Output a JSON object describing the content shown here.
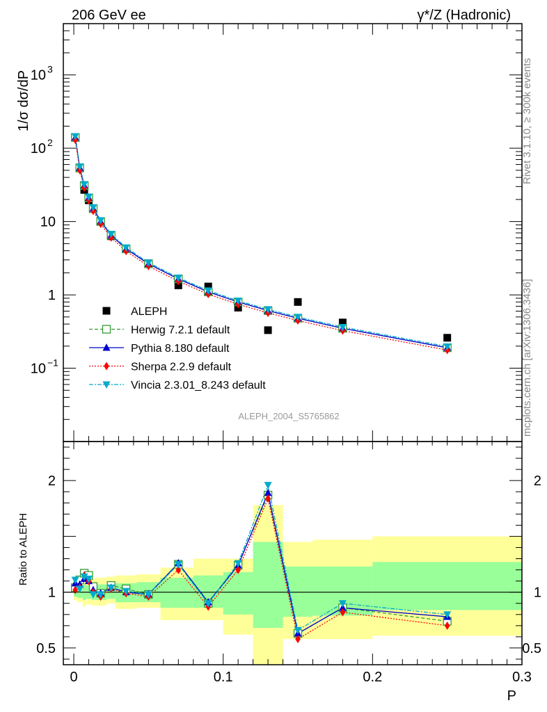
{
  "header": {
    "left": "206 GeV ee",
    "right": "γ*/Z (Hadronic)"
  },
  "side_text": {
    "rivet": "Rivet 3.1.10, ≥ 300k events",
    "mcplots": "mcplots.cern.ch [arXiv:1306.3436]"
  },
  "analysis_label": "ALEPH_2004_S5765862",
  "chart_data": {
    "type": "line",
    "title": "206 GeV ee",
    "xlabel": "P",
    "ylabel_main": "1/σ  dσ/dP",
    "ylabel_ratio": "Ratio to ALEPH",
    "xlim": [
      -0.007,
      0.3
    ],
    "ylim_main": [
      0.01,
      5000
    ],
    "ylim_ratio": [
      0.35,
      2.35
    ],
    "x_ticks": [
      {
        "v": 0,
        "label": "0"
      },
      {
        "v": 0.1,
        "label": "0.1"
      },
      {
        "v": 0.2,
        "label": "0.2"
      },
      {
        "v": 0.3,
        "label": "0.3"
      }
    ],
    "y_ticks_main": [
      {
        "v": 0.1,
        "base": "10",
        "exp": "−1"
      },
      {
        "v": 1,
        "base": "1",
        "exp": ""
      },
      {
        "v": 10,
        "base": "10",
        "exp": ""
      },
      {
        "v": 100,
        "base": "10",
        "exp": "2"
      },
      {
        "v": 1000,
        "base": "10",
        "exp": "3"
      }
    ],
    "y_ticks_ratio": [
      {
        "v": 0.5,
        "label": "0.5"
      },
      {
        "v": 1,
        "label": "1"
      },
      {
        "v": 2,
        "label": "2"
      }
    ],
    "x": [
      0.001,
      0.004,
      0.007,
      0.01,
      0.013,
      0.018,
      0.025,
      0.035,
      0.05,
      0.07,
      0.09,
      0.11,
      0.13,
      0.15,
      0.18,
      0.25
    ],
    "bin_edges": [
      0,
      0.002,
      0.006,
      0.008,
      0.012,
      0.014,
      0.022,
      0.028,
      0.042,
      0.058,
      0.08,
      0.1,
      0.12,
      0.14,
      0.16,
      0.2,
      0.3
    ],
    "data": {
      "name": "ALEPH",
      "values": [
        140,
        53,
        27,
        19.5,
        15,
        10,
        6.3,
        4.2,
        2.7,
        1.35,
        1.3,
        0.67,
        0.33,
        0.8,
        0.42,
        0.26
      ]
    },
    "bands": {
      "yellow_lo": [
        0.93,
        0.91,
        0.87,
        0.89,
        0.88,
        0.88,
        0.9,
        0.85,
        0.86,
        0.75,
        0.75,
        0.62,
        0.3,
        0.58,
        0.58,
        0.61
      ],
      "yellow_hi": [
        1.07,
        1.09,
        1.13,
        1.11,
        1.12,
        1.13,
        1.14,
        1.15,
        1.16,
        1.22,
        1.3,
        1.3,
        1.78,
        1.45,
        1.47,
        1.5
      ],
      "green_lo": [
        0.96,
        0.95,
        0.93,
        0.94,
        0.93,
        0.93,
        0.94,
        0.91,
        0.91,
        0.86,
        0.86,
        0.8,
        0.68,
        0.78,
        0.79,
        0.84
      ],
      "green_hi": [
        1.04,
        1.05,
        1.07,
        1.06,
        1.07,
        1.07,
        1.07,
        1.08,
        1.09,
        1.13,
        1.15,
        1.18,
        1.45,
        1.23,
        1.23,
        1.27
      ]
    },
    "series": [
      {
        "name": "Herwig 7.2.1 default",
        "color": "#339933",
        "dash": "5,3",
        "marker": "open-square",
        "values": [
          1.04,
          1.11,
          1.17,
          1.15,
          1.05,
          0.99,
          1.06,
          1.03,
          0.98,
          1.25,
          0.9,
          1.24,
          1.87,
          0.63,
          0.86,
          0.74
        ]
      },
      {
        "name": "Pythia 8.180 default",
        "color": "#0000cc",
        "dash": "",
        "marker": "triangle-up",
        "values": [
          1.08,
          1.07,
          1.12,
          1.1,
          1.02,
          0.99,
          1.04,
          1.0,
          0.98,
          1.26,
          0.91,
          1.24,
          1.89,
          0.63,
          0.86,
          0.78
        ]
      },
      {
        "name": "Sherpa 2.2.9 default",
        "color": "#ff0000",
        "dash": "2,2",
        "marker": "diamond",
        "values": [
          1.02,
          1.04,
          1.15,
          1.1,
          1.0,
          0.96,
          1.03,
          0.99,
          0.96,
          1.2,
          0.87,
          1.2,
          1.84,
          0.58,
          0.82,
          0.7
        ]
      },
      {
        "name": "Vincia 2.3.01_8.243 default",
        "color": "#00aacc",
        "dash": "6,2,2,2",
        "marker": "triangle-down",
        "values": [
          1.11,
          1.03,
          1.14,
          1.12,
          0.98,
          0.98,
          1.04,
          1.01,
          0.98,
          1.25,
          0.9,
          1.26,
          1.96,
          0.66,
          0.9,
          0.8
        ]
      }
    ],
    "legend_position": "bottom-left"
  }
}
